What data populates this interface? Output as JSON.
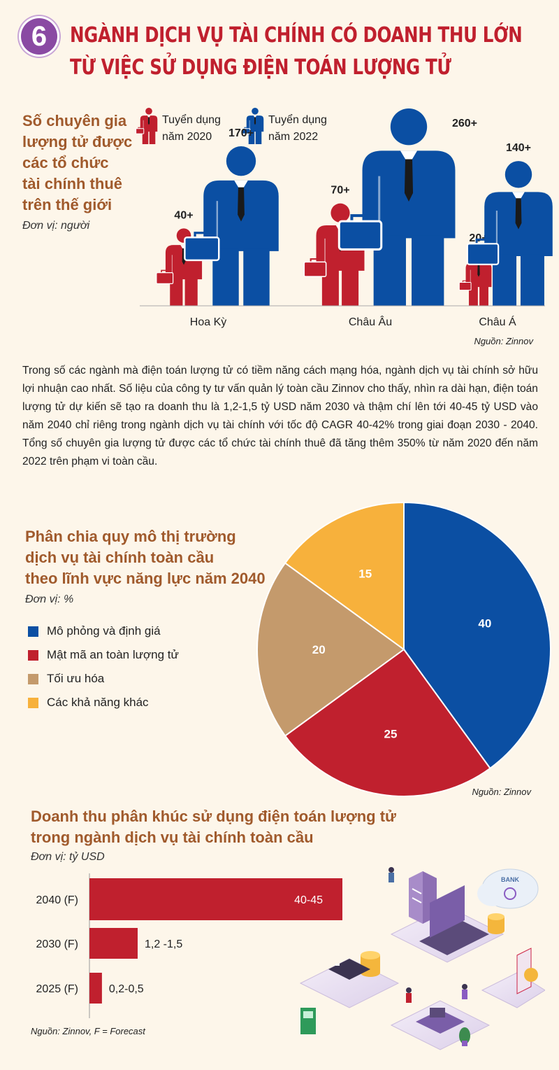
{
  "header": {
    "badge": "6",
    "title_line1": "NGÀNH DỊCH VỤ TÀI CHÍNH CÓ DOANH THU LỚN",
    "title_line2": "TỪ VIỆC SỬ DỤNG ĐIỆN TOÁN LƯỢNG TỬ"
  },
  "colors": {
    "red": "#c0202e",
    "blue": "#0b4fa3",
    "tan": "#c49a6c",
    "yellow": "#f7b13c",
    "brown_title": "#a05a2c"
  },
  "chart_data": [
    {
      "type": "bar",
      "title_lines": [
        "Số chuyên gia",
        "lượng tử được",
        "các tổ chức",
        "tài chính thuê",
        "trên thế giới"
      ],
      "unit": "Đơn vị: người",
      "categories": [
        "Hoa Kỳ",
        "Châu Âu",
        "Châu Á"
      ],
      "series": [
        {
          "name_lines": [
            "Tuyển dụng",
            "năm 2020"
          ],
          "values": [
            40,
            70,
            20
          ],
          "labels": [
            "40+",
            "70+",
            "20+"
          ]
        },
        {
          "name_lines": [
            "Tuyển dụng",
            "năm 2022"
          ],
          "values": [
            170,
            260,
            140
          ],
          "labels": [
            "170+",
            "260+",
            "140+"
          ]
        }
      ],
      "source": "Nguồn: Zinnov"
    },
    {
      "type": "pie",
      "title_lines": [
        "Phân chia quy mô thị trường",
        "dịch vụ tài chính toàn cầu",
        "theo lĩnh vực năng lực năm 2040"
      ],
      "unit": "Đơn vị: %",
      "slices": [
        {
          "name": "Mô phỏng và định giá",
          "value": 40,
          "label": "40"
        },
        {
          "name": "Mật mã an toàn lượng tử",
          "value": 25,
          "label": "25"
        },
        {
          "name": "Tối ưu hóa",
          "value": 20,
          "label": "20"
        },
        {
          "name": "Các khả năng khác",
          "value": 15,
          "label": "15"
        }
      ],
      "source": "Nguồn: Zinnov"
    },
    {
      "type": "bar",
      "orientation": "horizontal",
      "title_lines": [
        "Doanh thu phân khúc sử dụng điện toán lượng tử",
        "trong ngành dịch vụ tài chính toàn cầu"
      ],
      "unit": "Đơn vị: tỷ USD",
      "categories": [
        "2040 (F)",
        "2030 (F)",
        "2025 (F)"
      ],
      "values": [
        42.5,
        1.35,
        0.35
      ],
      "value_labels": [
        "40-45",
        "1,2 -1,5",
        "0,2-0,5"
      ],
      "source": "Nguồn: Zinnov, F = Forecast"
    }
  ],
  "paragraph": "Trong số các ngành mà điện toán lượng tử có tiềm năng cách mạng hóa, ngành dịch vụ tài chính sở hữu lợi nhuận cao nhất. Số liệu của công ty tư vấn quản lý toàn cầu Zinnov cho thấy, nhìn ra dài hạn, điện toán lượng tử dự kiến sẽ tạo ra doanh thu là 1,2-1,5 tỷ USD năm 2030 và thậm chí lên tới 40-45 tỷ USD vào năm 2040 chỉ riêng trong ngành dịch vụ tài chính với tốc độ CAGR 40-42% trong giai đoạn 2030 - 2040. Tổng số chuyên gia lượng tử được các tổ chức tài chính thuê đã tăng thêm 350% từ năm 2020 đến năm 2022 trên phạm vi toàn cầu.",
  "illustration": {
    "bank_sign": "BANK"
  }
}
